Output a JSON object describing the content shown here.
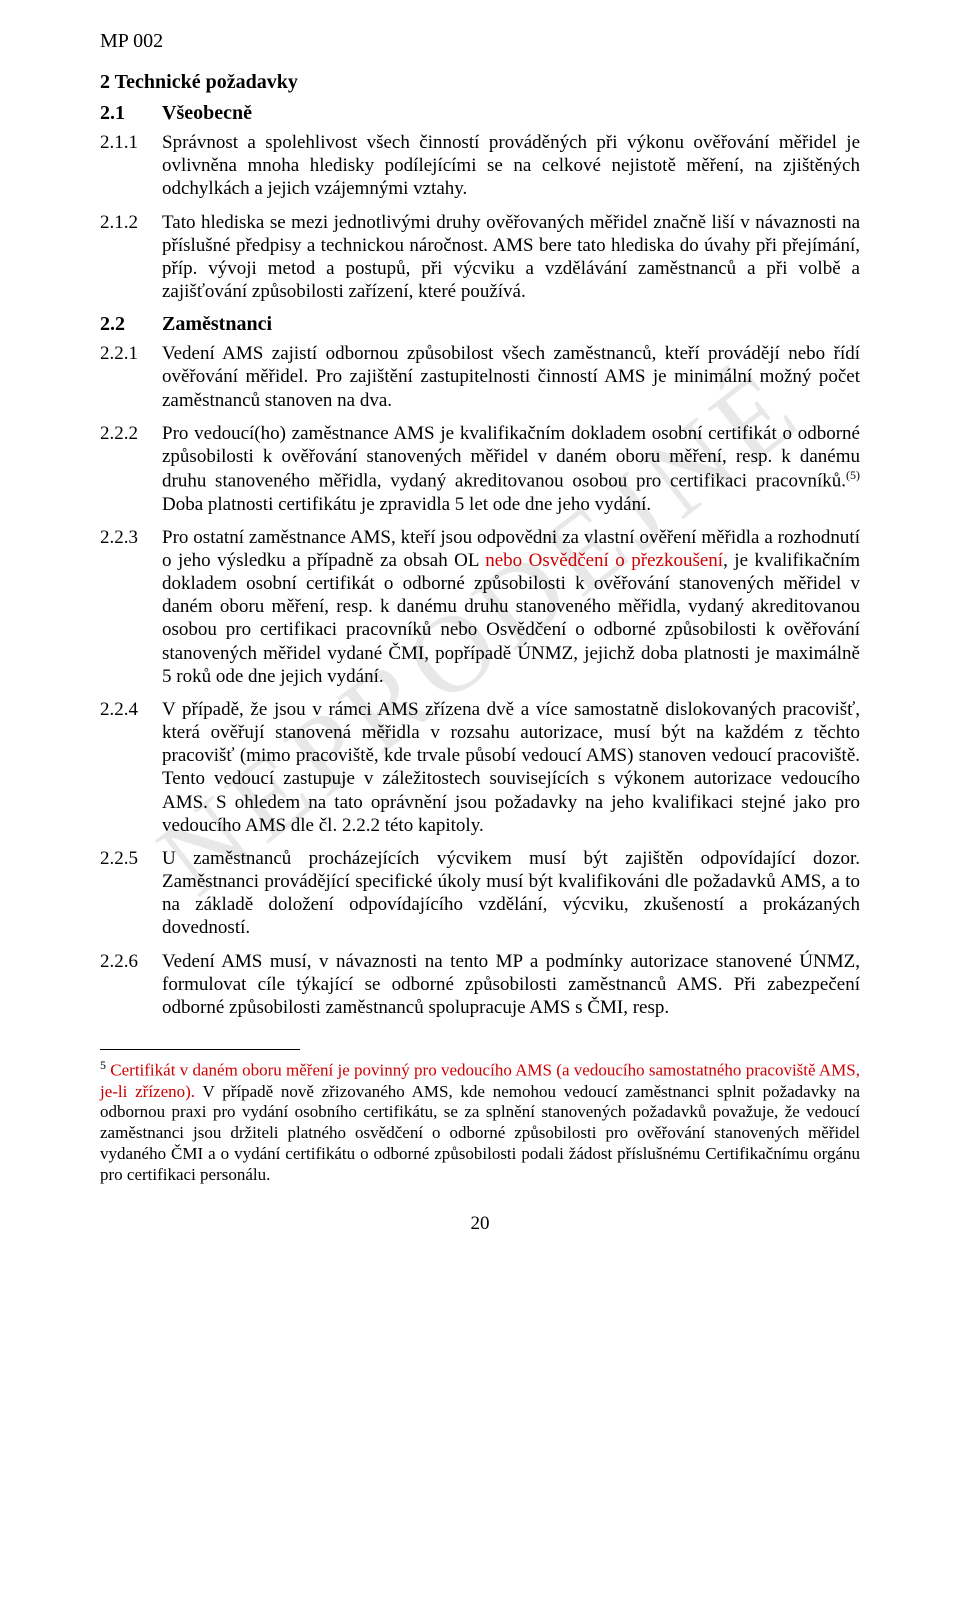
{
  "document": {
    "header_code": "MP 002",
    "watermark": "NEPRODEJNÉ",
    "page_number": "20",
    "colors": {
      "text": "#000000",
      "red": "#cc0000",
      "background": "#ffffff",
      "watermark": "rgba(0,0,0,0.09)"
    }
  },
  "section": {
    "title": "2  Technické požadavky",
    "sub1": {
      "num": "2.1",
      "label": "Všeobecně"
    },
    "p211": {
      "num": "2.1.1",
      "text": "Správnost a spolehlivost všech činností prováděných při výkonu ověřování měřidel je ovlivněna mnoha hledisky podílejícími se na celkové nejistotě měření, na zjištěných odchylkách a jejich vzájemnými vztahy."
    },
    "p212": {
      "num": "2.1.2",
      "text": "Tato hlediska se mezi jednotlivými druhy ověřovaných měřidel značně liší v návaznosti na příslušné předpisy a technickou náročnost. AMS bere tato hlediska do úvahy při přejímání, příp. vývoji metod a postupů, při výcviku a vzdělávání zaměstnanců a při volbě a zajišťování způsobilosti zařízení, které používá."
    },
    "sub2": {
      "num": "2.2",
      "label": "Zaměstnanci"
    },
    "p221": {
      "num": "2.2.1",
      "text": "Vedení AMS zajistí odbornou způsobilost všech zaměstnanců, kteří provádějí nebo řídí ověřování měřidel. Pro zajištění zastupitelnosti činností AMS je minimální možný počet zaměstnanců stanoven na dva."
    },
    "p222": {
      "num": "2.2.2",
      "text_a": "Pro vedoucí(ho) zaměstnance AMS je kvalifikačním dokladem osobní certifikát o odborné způsobilosti k ověřování stanovených měřidel v daném oboru měření, resp. k danému druhu stanoveného měřidla, vydaný akreditovanou osobou pro certifikaci pracovníků.",
      "super": "(5)",
      "text_b": " Doba platnosti certifikátu je zpravidla 5 let ode dne jeho vydání."
    },
    "p223": {
      "num": "2.2.3",
      "text_a": "Pro ostatní zaměstnance AMS, kteří jsou odpovědni za vlastní ověření měřidla a rozhodnutí o jeho výsledku a případně za obsah OL ",
      "red": "nebo Osvědčení o přezkoušení",
      "text_b": ", je kvalifikačním dokladem osobní certifikát o odborné způsobilosti k ověřování stanovených měřidel v daném oboru měření, resp. k danému druhu stanoveného měřidla, vydaný akreditovanou osobou pro certifikaci pracovníků nebo Osvědčení o odborné způsobilosti k ověřování stanovených měřidel vydané ČMI, popřípadě ÚNMZ, jejichž doba platnosti je maximálně 5 roků ode dne jejich vydání."
    },
    "p224": {
      "num": "2.2.4",
      "text": "V případě, že jsou v rámci AMS zřízena dvě a více samostatně dislokovaných pracovišť, která ověřují stanovená měřidla v rozsahu autorizace, musí být na každém z těchto pracovišť (mimo pracoviště, kde trvale působí vedoucí AMS) stanoven vedoucí pracoviště. Tento vedoucí zastupuje v  záležitostech souvisejících s výkonem autorizace vedoucího AMS. S ohledem na tato oprávnění jsou požadavky na jeho kvalifikaci stejné jako pro vedoucího AMS dle čl. 2.2.2 této kapitoly."
    },
    "p225": {
      "num": "2.2.5",
      "text": "U zaměstnanců procházejících výcvikem musí být zajištěn odpovídající dozor. Zaměstnanci provádějící specifické úkoly musí být kvalifikováni dle požadavků AMS, a to na základě doložení odpovídajícího vzdělání, výcviku, zkušeností a prokázaných dovedností."
    },
    "p226": {
      "num": "2.2.6",
      "text": "Vedení AMS musí, v návaznosti na tento MP a podmínky autorizace stanovené ÚNMZ, formulovat cíle týkající se odborné způsobilosti zaměstnanců AMS. Při zabezpečení odborné způsobilosti zaměstnanců spolupracuje AMS s ČMI, resp."
    }
  },
  "footnote": {
    "num": "5",
    "red": "Certifikát v daném oboru měření je povinný pro vedoucího AMS (a vedoucího samostatného pracoviště AMS, je-li zřízeno).",
    "rest": " V případě nově zřizovaného AMS, kde nemohou vedoucí zaměstnanci splnit požadavky na odbornou praxi pro vydání osobního certifikátu, se za splnění stanovených požadavků považuje, že vedoucí zaměstnanci jsou držiteli platného osvědčení o odborné způsobilosti pro ověřování stanovených měřidel vydaného ČMI a o vydání certifikátu o odborné způsobilosti podali žádost příslušnému Certifikačnímu orgánu pro certifikaci personálu."
  }
}
